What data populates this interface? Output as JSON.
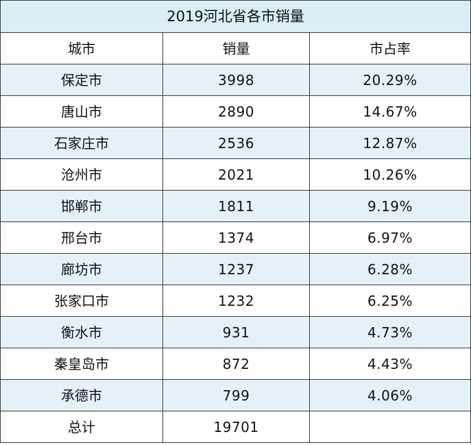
{
  "table": {
    "title": "2019河北省各市销量",
    "headers": [
      "城市",
      "销量",
      "市占率"
    ],
    "rows": [
      {
        "city": "保定市",
        "sales": "3998",
        "share": "20.29%"
      },
      {
        "city": "唐山市",
        "sales": "2890",
        "share": "14.67%"
      },
      {
        "city": "石家庄市",
        "sales": "2536",
        "share": "12.87%"
      },
      {
        "city": "沧州市",
        "sales": "2021",
        "share": "10.26%"
      },
      {
        "city": "邯郸市",
        "sales": "1811",
        "share": "9.19%"
      },
      {
        "city": "邢台市",
        "sales": "1374",
        "share": "6.97%"
      },
      {
        "city": "廊坊市",
        "sales": "1237",
        "share": "6.28%"
      },
      {
        "city": "张家口市",
        "sales": "1232",
        "share": "6.25%"
      },
      {
        "city": "衡水市",
        "sales": "931",
        "share": "4.73%"
      },
      {
        "city": "秦皇岛市",
        "sales": "872",
        "share": "4.43%"
      },
      {
        "city": "承德市",
        "sales": "799",
        "share": "4.06%"
      }
    ],
    "total": {
      "label": "总计",
      "sales": "19701",
      "share": ""
    }
  },
  "colors": {
    "title_bg": "#dbeef4",
    "shaded_row_bg": "#e4f2f8",
    "plain_row_bg": "#ffffff",
    "border": "#3a3a3a"
  }
}
